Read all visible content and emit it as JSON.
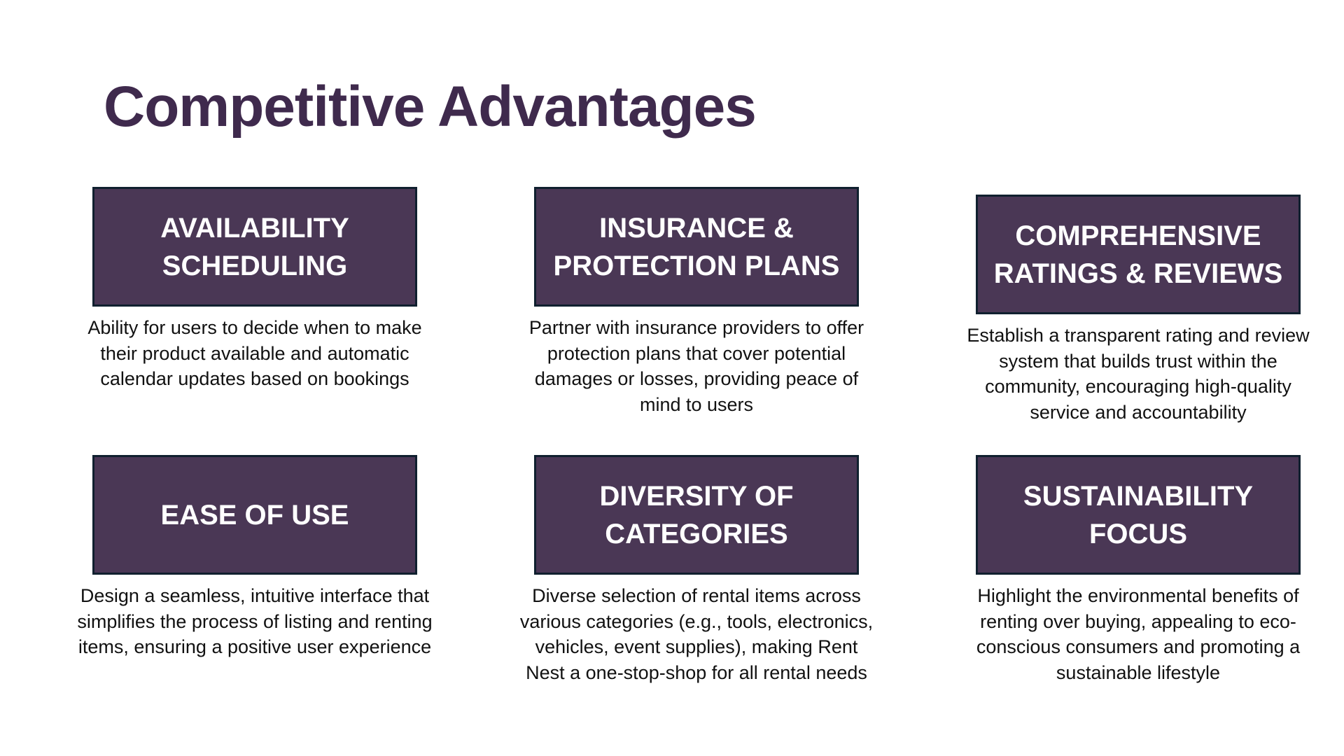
{
  "slide": {
    "title": "Competitive Advantages",
    "colors": {
      "title": "#3f2a4d",
      "card_fill": "#4a3755",
      "card_border": "#10202f",
      "card_text": "#ffffff",
      "body_text": "#111111"
    }
  },
  "cards": [
    {
      "header_lines": [
        "AVAILABILITY",
        "SCHEDULING"
      ],
      "description": "Ability for users to decide when to make their product available and automatic calendar updates based on bookings"
    },
    {
      "header_lines": [
        "INSURANCE &",
        "PROTECTION PLANS"
      ],
      "description": "Partner with insurance providers to offer protection plans that cover potential damages or losses, providing peace of mind to users"
    },
    {
      "header_lines": [
        "COMPREHENSIVE",
        "RATINGS & REVIEWS"
      ],
      "description": "Establish a transparent rating and review system that builds trust within the community, encouraging high-quality service and accountability"
    },
    {
      "header_lines": [
        "EASE OF USE"
      ],
      "description": "Design a seamless, intuitive interface that simplifies the process of listing and renting items, ensuring a positive user experience"
    },
    {
      "header_lines": [
        "DIVERSITY OF",
        "CATEGORIES"
      ],
      "description": "Diverse selection of rental items across various categories (e.g., tools, electronics, vehicles, event supplies), making Rent Nest a one-stop-shop for all rental needs"
    },
    {
      "header_lines": [
        "SUSTAINABILITY",
        "FOCUS"
      ],
      "description": "Highlight the environmental benefits of renting over buying, appealing to eco-conscious consumers and promoting a sustainable lifestyle"
    }
  ]
}
